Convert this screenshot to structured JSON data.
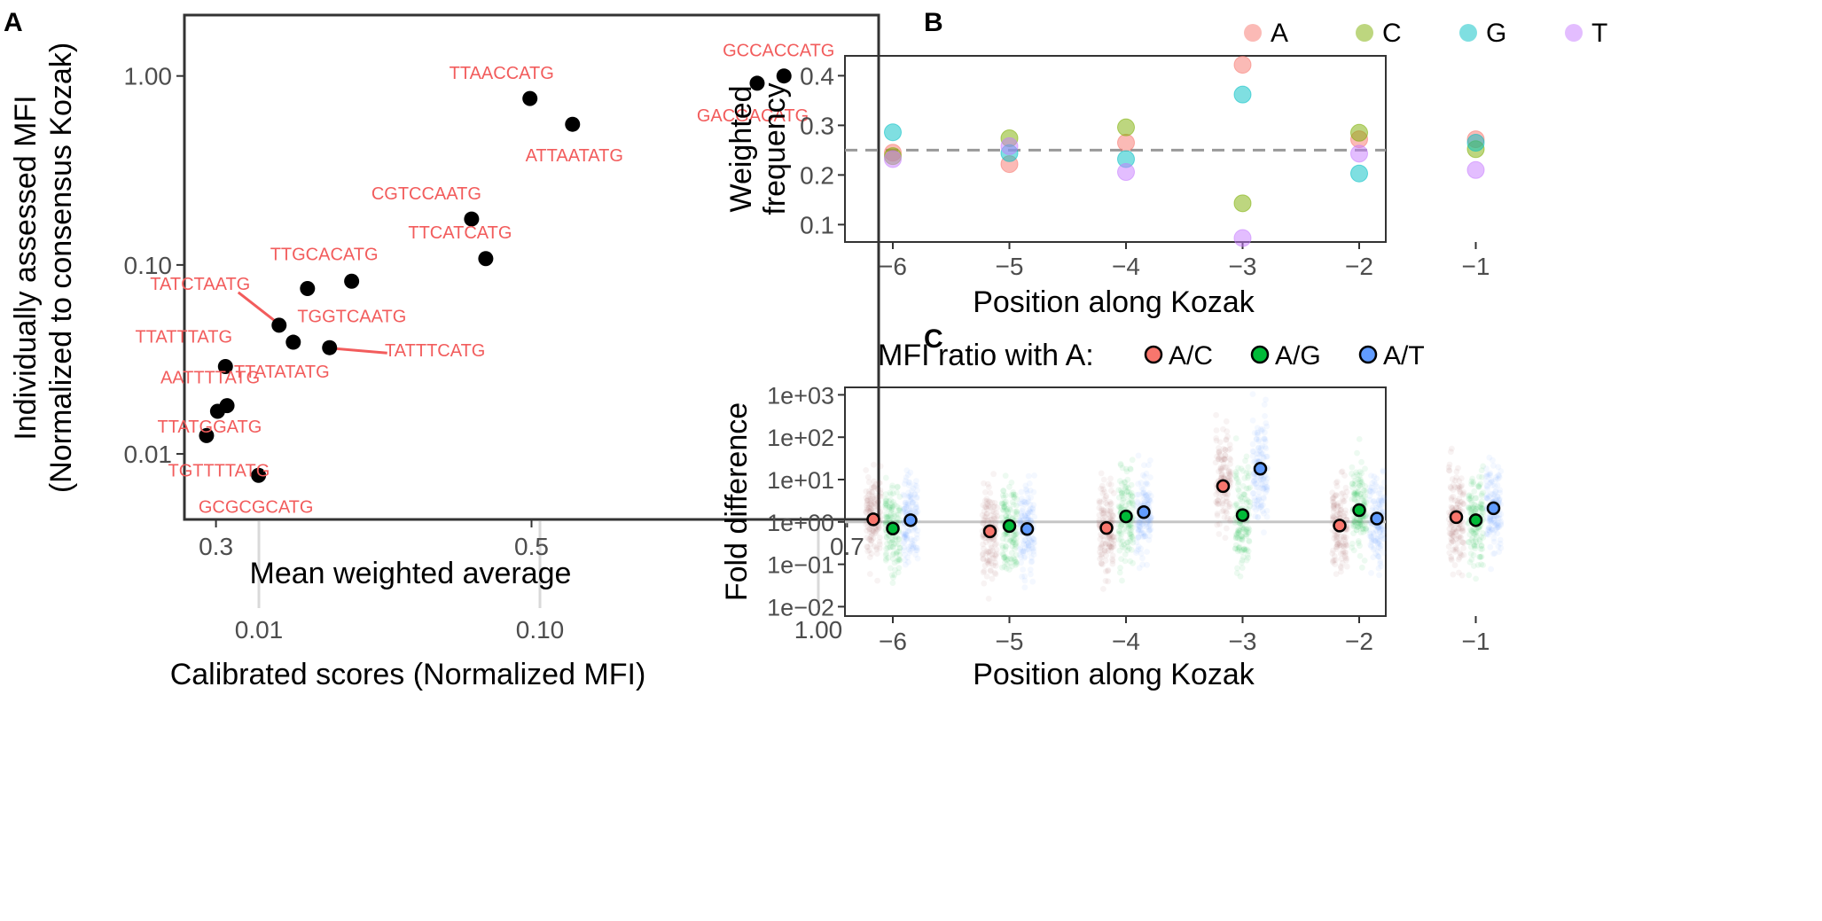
{
  "chart_data": [
    {
      "panel": "A",
      "type": "scatter",
      "xlabel": "Mean weighted average",
      "ylabel": "Individually assessed MFI",
      "ylabel2": "(Normalized to consensus Kozak)",
      "secondary_xlabel": "Calibrated scores (Normalized MFI)",
      "xlim": [
        0.28,
        0.72
      ],
      "ylim": [
        0.0045,
        2.1
      ],
      "ylog": true,
      "xticks": [
        0.3,
        0.5,
        0.7
      ],
      "xtick_labels": [
        "0.3",
        "0.5",
        "0.7"
      ],
      "yticks": [
        0.01,
        0.1,
        1
      ],
      "ytick_labels": [
        "0.01",
        "0.10",
        "1.00"
      ],
      "secondary_xticks": [
        0.01,
        0.1,
        1
      ],
      "secondary_xtick_labels": [
        "0.01",
        "0.10",
        "1.00"
      ],
      "label_color": "#f25c5c",
      "points": [
        {
          "label": "GCCACCATG",
          "x": 0.66,
          "y": 1.0
        },
        {
          "label": "GACGACATG",
          "x": 0.643,
          "y": 0.915
        },
        {
          "label": "TTAACCATG",
          "x": 0.499,
          "y": 0.76
        },
        {
          "label": "ATTAATATG",
          "x": 0.526,
          "y": 0.555
        },
        {
          "label": "CGTCCAATG",
          "x": 0.462,
          "y": 0.175
        },
        {
          "label": "TTCATCATG",
          "x": 0.471,
          "y": 0.108
        },
        {
          "label": "TTGCACATG",
          "x": 0.386,
          "y": 0.082
        },
        {
          "label": "TGGTCAATG",
          "x": 0.358,
          "y": 0.075
        },
        {
          "label": "TATCTAATG",
          "x": 0.34,
          "y": 0.048
        },
        {
          "label": "TTATATATG",
          "x": 0.349,
          "y": 0.039
        },
        {
          "label": "TATTTCATG",
          "x": 0.372,
          "y": 0.0365
        },
        {
          "label": "TTATTTATG",
          "x": 0.306,
          "y": 0.029
        },
        {
          "label": "AATTTTATG",
          "x": 0.307,
          "y": 0.018
        },
        {
          "label": "TTATGGATG",
          "x": 0.301,
          "y": 0.0168
        },
        {
          "label": "TGTTTTATG",
          "x": 0.294,
          "y": 0.0125
        },
        {
          "label": "GCGCGCATG",
          "x": 0.327,
          "y": 0.0077
        }
      ]
    },
    {
      "panel": "B",
      "type": "scatter",
      "xlabel": "Position along Kozak",
      "ylabel": "Weighted",
      "ylabel2": "frequency",
      "categories": [
        "−6",
        "−5",
        "−4",
        "−3",
        "−2",
        "−1"
      ],
      "ylim": [
        0.065,
        0.44
      ],
      "yticks": [
        0.1,
        0.2,
        0.3,
        0.4
      ],
      "ytick_labels": [
        "0.1",
        "0.2",
        "0.3",
        "0.4"
      ],
      "reference_line": 0.25,
      "series": [
        {
          "name": "A",
          "color": "#f8766d",
          "values": [
            0.245,
            0.222,
            0.265,
            0.422,
            0.272,
            0.272
          ]
        },
        {
          "name": "C",
          "color": "#7cae00",
          "values": [
            0.238,
            0.274,
            0.296,
            0.143,
            0.285,
            0.252
          ]
        },
        {
          "name": "G",
          "color": "#00bfc4",
          "values": [
            0.286,
            0.244,
            0.232,
            0.362,
            0.203,
            0.265
          ]
        },
        {
          "name": "T",
          "color": "#c77cff",
          "values": [
            0.232,
            0.258,
            0.206,
            0.073,
            0.243,
            0.21
          ]
        }
      ]
    },
    {
      "panel": "C",
      "type": "scatter",
      "title_prefix": "MFI ratio with A:",
      "xlabel": "Position along Kozak",
      "ylabel": "Fold difference",
      "categories": [
        "−6",
        "−5",
        "−4",
        "−3",
        "−2",
        "−1"
      ],
      "ylog": true,
      "ylim": [
        0.006,
        1500
      ],
      "yticks": [
        0.01,
        0.1,
        1,
        10,
        100,
        1000
      ],
      "ytick_labels": [
        "1e−02",
        "1e−01",
        "1e+00",
        "1e+01",
        "1e+02",
        "1e+03"
      ],
      "reference_line": 1,
      "series": [
        {
          "name": "A/C",
          "color": "#f8766d",
          "cloud_color": "#a0524e",
          "medians": [
            1.15,
            0.6,
            0.72,
            7.0,
            0.82,
            1.3
          ]
        },
        {
          "name": "A/G",
          "color": "#00ba38",
          "cloud_color": "#00ba38",
          "medians": [
            0.7,
            0.8,
            1.35,
            1.45,
            1.9,
            1.1
          ]
        },
        {
          "name": "A/T",
          "color": "#619cff",
          "cloud_color": "#619cff",
          "medians": [
            1.1,
            0.68,
            1.7,
            18.0,
            1.2,
            2.1
          ]
        }
      ]
    }
  ],
  "panels": {
    "a": "A",
    "b": "B",
    "c": "C"
  }
}
